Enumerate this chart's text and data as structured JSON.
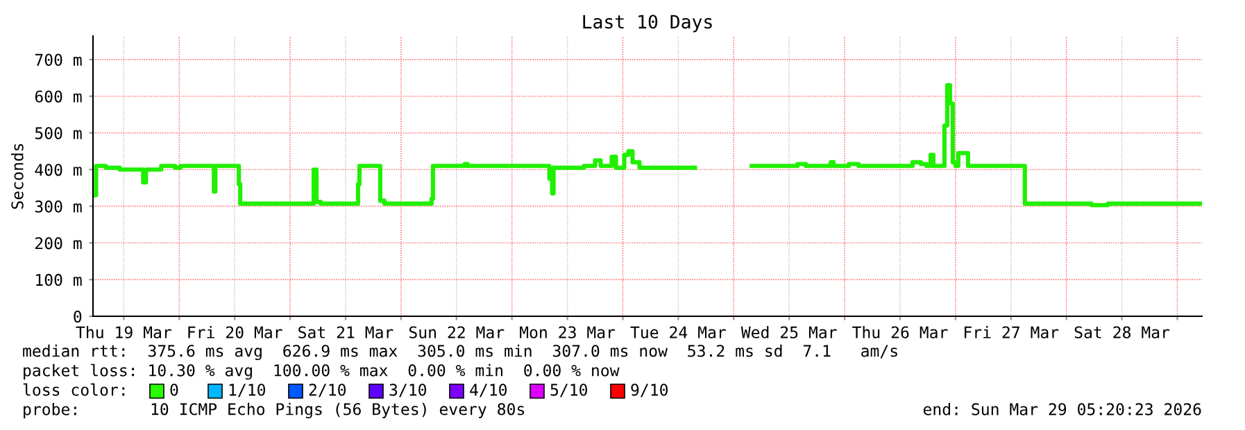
{
  "chart_data": {
    "type": "step",
    "title": "Last 10 Days",
    "ylabel": "Seconds",
    "x": [
      "2026-03-19T05:42",
      "2026-03-19T06:00",
      "2026-03-19T08:06",
      "2026-03-19T11:06",
      "2026-03-19T15:36",
      "2026-03-19T16:12",
      "2026-03-19T16:48",
      "2026-03-19T20:06",
      "2026-03-19T23:06",
      "2026-03-20T00:18",
      "2026-03-20T07:30",
      "2026-03-20T07:48",
      "2026-03-20T12:36",
      "2026-03-20T12:54",
      "2026-03-20T13:12",
      "2026-03-21T05:06",
      "2026-03-21T05:42",
      "2026-03-21T06:36",
      "2026-03-21T14:42",
      "2026-03-21T15:00",
      "2026-03-21T19:30",
      "2026-03-21T20:24",
      "2026-03-22T06:18",
      "2026-03-22T06:36",
      "2026-03-22T06:54",
      "2026-03-22T13:48",
      "2026-03-22T14:24",
      "2026-03-23T07:48",
      "2026-03-23T08:06",
      "2026-03-23T08:42",
      "2026-03-23T09:00",
      "2026-03-23T15:36",
      "2026-03-23T18:00",
      "2026-03-23T19:12",
      "2026-03-23T21:36",
      "2026-03-23T22:30",
      "2026-03-24T00:18",
      "2026-03-24T01:12",
      "2026-03-24T02:06",
      "2026-03-24T03:36",
      "2026-03-24T15:36",
      "2026-03-25T03:54",
      "2026-03-25T12:36",
      "2026-03-25T13:48",
      "2026-03-25T15:36",
      "2026-03-25T21:00",
      "2026-03-25T21:36",
      "2026-03-26T00:54",
      "2026-03-26T03:00",
      "2026-03-26T12:36",
      "2026-03-26T14:42",
      "2026-03-26T16:30",
      "2026-03-26T17:42",
      "2026-03-26T18:36",
      "2026-03-26T19:12",
      "2026-03-26T21:18",
      "2026-03-26T21:36",
      "2026-03-26T22:12",
      "2026-03-26T22:48",
      "2026-03-26T23:24",
      "2026-03-27T00:00",
      "2026-03-27T00:36",
      "2026-03-27T02:06",
      "2026-03-27T02:42",
      "2026-03-27T14:42",
      "2026-03-27T15:00",
      "2026-03-28T05:24",
      "2026-03-28T09:00",
      "2026-03-29T05:20"
    ],
    "series": [
      {
        "color": "#20f000",
        "values": [
          330,
          410,
          405,
          400,
          400,
          365,
          400,
          410,
          405,
          410,
          340,
          410,
          410,
          360,
          307,
          400,
          312,
          307,
          360,
          410,
          315,
          307,
          307,
          320,
          410,
          415,
          410,
          410,
          375,
          335,
          405,
          410,
          425,
          410,
          435,
          405,
          440,
          450,
          420,
          405,
          null,
          410,
          410,
          415,
          410,
          420,
          410,
          415,
          410,
          410,
          420,
          415,
          410,
          440,
          410,
          410,
          520,
          630,
          580,
          420,
          410,
          445,
          445,
          410,
          410,
          307,
          303,
          307,
          307
        ]
      }
    ],
    "xlim": [
      "2026-03-19T05:20",
      "2026-03-29T05:20"
    ],
    "xticks": [
      {
        "value": "2026-03-19T12:00",
        "label": "Thu 19 Mar"
      },
      {
        "value": "2026-03-20T00:00",
        "label": null
      },
      {
        "value": "2026-03-20T12:00",
        "label": "Fri 20 Mar"
      },
      {
        "value": "2026-03-21T00:00",
        "label": null
      },
      {
        "value": "2026-03-21T12:00",
        "label": "Sat 21 Mar"
      },
      {
        "value": "2026-03-22T00:00",
        "label": null
      },
      {
        "value": "2026-03-22T12:00",
        "label": "Sun 22 Mar"
      },
      {
        "value": "2026-03-23T00:00",
        "label": null
      },
      {
        "value": "2026-03-23T12:00",
        "label": "Mon 23 Mar"
      },
      {
        "value": "2026-03-24T00:00",
        "label": null
      },
      {
        "value": "2026-03-24T12:00",
        "label": "Tue 24 Mar"
      },
      {
        "value": "2026-03-25T00:00",
        "label": null
      },
      {
        "value": "2026-03-25T12:00",
        "label": "Wed 25 Mar"
      },
      {
        "value": "2026-03-26T00:00",
        "label": null
      },
      {
        "value": "2026-03-26T12:00",
        "label": "Thu 26 Mar"
      },
      {
        "value": "2026-03-27T00:00",
        "label": null
      },
      {
        "value": "2026-03-27T12:00",
        "label": "Fri 27 Mar"
      },
      {
        "value": "2026-03-28T00:00",
        "label": null
      },
      {
        "value": "2026-03-28T12:00",
        "label": "Sat 28 Mar"
      },
      {
        "value": "2026-03-29T00:00",
        "label": null
      }
    ],
    "ylim": [
      0,
      764
    ],
    "yticks": [
      0,
      {
        "value": 100,
        "label": "100 m"
      },
      {
        "value": 200,
        "label": "200 m"
      },
      {
        "value": 300,
        "label": "300 m"
      },
      {
        "value": 400,
        "label": "400 m"
      },
      {
        "value": 500,
        "label": "500 m"
      },
      {
        "value": 600,
        "label": "600 m"
      },
      {
        "value": 700,
        "label": "700 m"
      }
    ],
    "grid": true,
    "annotations": [
      "median rtt:  375.6 ms avg  626.9 ms max  305.0 ms min  307.0 ms now  53.2 ms sd  7.1   am/s",
      "packet loss: 10.30 % avg  100.00 % max  0.00 % min  0.00 % now",
      "loss color:",
      "0",
      "1/10",
      "2/10",
      "3/10",
      "4/10",
      "5/10",
      "9/10",
      "probe:",
      "10 ICMP Echo Pings (56 Bytes) every 80s",
      "end: Sun Mar 29 05:20:23 2026"
    ]
  }
}
